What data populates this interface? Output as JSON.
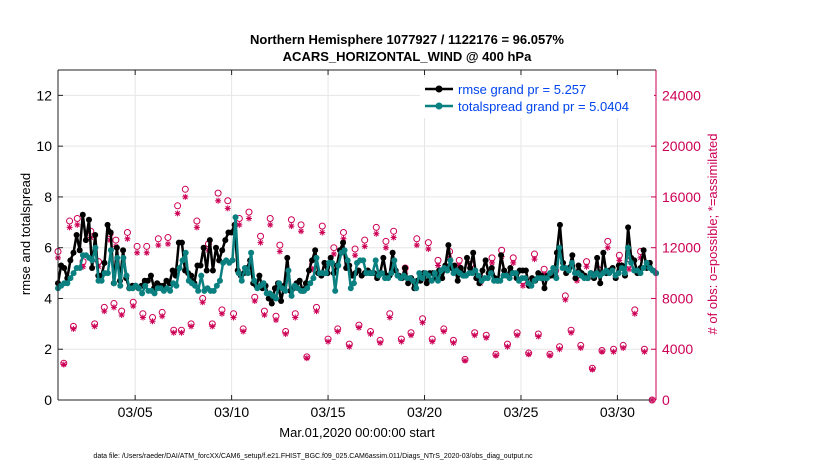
{
  "chart_data": {
    "type": "line",
    "title": "Northern Hemisphere 1077927 / 1122176 = 96.057%",
    "subtitle": "ACARS_HORIZONTAL_WIND @ 400 hPa",
    "xlabel": "Mar.01,2020 00:00:00 start",
    "ylabel": "rmse and totalspread",
    "y2label": "# of obs: o=possible; *=assimilated",
    "footer": "data file: /Users/raeder/DAI/ATM_forcXX/CAM6_setup/f.e21.FHIST_BGC.f09_025.CAM6assim.011/Diags_NTrS_2020-03/obs_diag_output.nc",
    "xlim": [
      1,
      32
    ],
    "ylim": [
      0,
      13
    ],
    "y2lim": [
      0,
      26000
    ],
    "x_ticks": [
      5,
      10,
      15,
      20,
      25,
      30
    ],
    "x_tick_labels": [
      "03/05",
      "03/10",
      "03/15",
      "03/20",
      "03/25",
      "03/30"
    ],
    "y_ticks": [
      0,
      2,
      4,
      6,
      8,
      10,
      12
    ],
    "y_tick_labels": [
      "0",
      "2",
      "4",
      "6",
      "8",
      "10",
      "12"
    ],
    "y2_ticks": [
      0,
      4000,
      8000,
      12000,
      16000,
      20000,
      24000
    ],
    "y2_tick_labels": [
      "0",
      "4000",
      "8000",
      "12000",
      "16000",
      "20000",
      "24000"
    ],
    "grid": true,
    "legend_position": "top-right",
    "colors": {
      "rmse": "#000000",
      "totalspread": "#0a8080",
      "obs": "#cc0055",
      "legend_text": "#0044ee"
    },
    "series": [
      {
        "name": "rmse grand pr = 5.257",
        "key": "rmse",
        "values": [
          4.6,
          5.3,
          5.2,
          4.8,
          5.5,
          5.8,
          6.5,
          5.9,
          7.3,
          6.3,
          7.1,
          5.2,
          6.5,
          4.9,
          4.9,
          5.4,
          6.9,
          6.6,
          4.6,
          6.0,
          4.7,
          5.9,
          4.8,
          4.4,
          4.5,
          4.5,
          4.4,
          4.5,
          4.7,
          4.7,
          4.9,
          4.4,
          4.6,
          4.5,
          4.5,
          4.7,
          4.6,
          5.1,
          4.9,
          6.2,
          6.2,
          5.1,
          5.0,
          4.9,
          4.6,
          5.3,
          5.3,
          6.0,
          5.1,
          6.3,
          5.1,
          6.0,
          5.5,
          5.9,
          6.3,
          6.6,
          6.6,
          6.9,
          5.1,
          4.9,
          5.0,
          5.2,
          5.5,
          4.6,
          4.5,
          4.9,
          4.4,
          4.5,
          4.0,
          3.8,
          4.4,
          4.6,
          3.9,
          4.5,
          5.6,
          4.3,
          4.4,
          4.6,
          4.7,
          4.3,
          4.6,
          5.1,
          5.5,
          5.9,
          5.0,
          4.9,
          5.4,
          5.0,
          5.6,
          5.0,
          5.3,
          5.9,
          6.2,
          5.2,
          5.3,
          4.9,
          5.0,
          5.1,
          4.9,
          5.0,
          5.1,
          5.0,
          5.0,
          4.8,
          5.0,
          5.6,
          4.9,
          4.9,
          5.8,
          5.1,
          4.9,
          4.8,
          5.2,
          4.6,
          4.8,
          4.4,
          4.7,
          4.7,
          5.0,
          4.6,
          5.0,
          5.0,
          4.8,
          5.1,
          4.8,
          5.3,
          6.1,
          5.2,
          5.3,
          4.7,
          5.2,
          4.9,
          5.6,
          5.2,
          5.8,
          4.8,
          4.6,
          5.1,
          5.5,
          5.0,
          5.2,
          4.8,
          4.7,
          5.7,
          5.1,
          4.9,
          5.2,
          5.0,
          4.8,
          5.1,
          5.1,
          5.1,
          4.5,
          4.8,
          4.7,
          5.0,
          4.9,
          4.4,
          4.9,
          4.9,
          4.9,
          5.8,
          6.9,
          5.4,
          5.0,
          5.2,
          5.7,
          4.8,
          5.3,
          5.0,
          4.9,
          4.8,
          5.0,
          4.8,
          5.6,
          4.6,
          5.8,
          5.0,
          5.1,
          5.2,
          4.8,
          5.3,
          5.3,
          4.9,
          6.8,
          5.6,
          5.5,
          5.0,
          5.2,
          5.9,
          5.2,
          5.4,
          5.1,
          5.0
        ]
      },
      {
        "name": "totalspread grand pr = 5.0404",
        "key": "totalspread",
        "values": [
          4.4,
          4.5,
          4.6,
          4.6,
          4.8,
          5.0,
          5.2,
          5.2,
          5.7,
          5.7,
          5.6,
          5.5,
          6.0,
          4.7,
          4.7,
          5.0,
          5.0,
          5.9,
          4.6,
          5.6,
          4.5,
          5.6,
          4.9,
          4.4,
          4.4,
          4.5,
          4.4,
          4.2,
          4.5,
          4.3,
          4.3,
          4.2,
          4.4,
          4.4,
          4.3,
          4.4,
          4.3,
          4.6,
          4.5,
          5.2,
          5.5,
          5.8,
          4.7,
          4.6,
          4.5,
          4.3,
          4.9,
          4.3,
          4.4,
          4.3,
          4.3,
          4.5,
          4.7,
          5.4,
          5.5,
          5.4,
          5.5,
          7.2,
          5.0,
          4.7,
          5.2,
          5.0,
          5.8,
          4.7,
          4.4,
          4.5,
          4.6,
          4.2,
          4.2,
          4.1,
          4.0,
          4.6,
          4.4,
          4.3,
          5.1,
          4.1,
          4.5,
          4.4,
          4.3,
          4.3,
          4.4,
          4.6,
          4.8,
          5.6,
          5.0,
          5.0,
          5.0,
          5.4,
          5.4,
          4.3,
          5.3,
          5.8,
          5.9,
          5.5,
          4.4,
          4.6,
          5.4,
          5.5,
          5.5,
          5.0,
          5.0,
          5.0,
          5.5,
          4.9,
          5.0,
          4.8,
          4.8,
          5.0,
          5.5,
          4.9,
          4.8,
          4.9,
          4.8,
          4.8,
          4.7,
          4.4,
          5.0,
          4.8,
          5.0,
          4.9,
          4.7,
          5.0,
          4.7,
          5.1,
          5.2,
          5.1,
          5.5,
          5.0,
          5.1,
          5.0,
          4.9,
          4.9,
          5.0,
          5.0,
          5.1,
          4.9,
          4.7,
          4.8,
          4.8,
          5.0,
          4.7,
          4.7,
          4.7,
          4.9,
          4.9,
          4.8,
          5.0,
          5.0,
          4.7,
          4.8,
          4.8,
          4.6,
          4.5,
          4.7,
          4.8,
          4.8,
          4.8,
          4.8,
          5.0,
          5.2,
          4.8,
          6.0,
          5.2,
          5.2,
          5.1,
          5.4,
          5.0,
          5.0,
          4.9,
          4.8,
          4.8,
          5.0,
          4.9,
          5.0,
          4.9,
          5.0,
          5.1,
          5.0,
          5.1,
          4.9,
          5.0,
          5.2,
          5.0,
          6.0,
          5.4,
          5.1,
          5.1,
          5.0,
          5.2,
          5.4,
          5.2,
          5.1,
          5.0
        ]
      }
    ],
    "obs_possible_x": [
      1.0,
      1.3,
      1.6,
      1.8,
      2.0,
      2.3,
      2.7,
      2.9,
      3.1,
      3.4,
      3.7,
      3.9,
      4.0,
      4.3,
      4.6,
      4.9,
      5.1,
      5.4,
      5.6,
      5.9,
      6.2,
      6.4,
      6.7,
      7.0,
      7.2,
      7.4,
      7.6,
      7.9,
      8.2,
      8.5,
      8.8,
      9.0,
      9.3,
      9.5,
      9.8,
      10.1,
      10.4,
      10.6,
      10.9,
      11.2,
      11.5,
      11.7,
      12.0,
      12.3,
      12.5,
      12.8,
      13.1,
      13.3,
      13.6,
      13.9,
      14.2,
      14.4,
      14.7,
      15.0,
      15.3,
      15.5,
      15.8,
      16.1,
      16.4,
      16.6,
      16.9,
      17.2,
      17.5,
      17.7,
      18.0,
      18.2,
      18.4,
      18.8,
      19.0,
      19.3,
      19.6,
      19.9,
      20.2,
      20.4,
      20.7,
      21.0,
      21.3,
      21.5,
      21.8,
      22.1,
      22.4,
      22.6,
      22.9,
      23.2,
      23.5,
      23.7,
      24.0,
      24.3,
      24.6,
      24.8,
      25.1,
      25.4,
      25.7,
      25.9,
      26.2,
      26.5,
      26.8,
      27.0,
      27.3,
      27.6,
      27.9,
      28.1,
      28.4,
      28.7,
      29.0,
      29.2,
      29.5,
      29.8,
      30.1,
      30.3,
      30.6,
      30.9,
      31.2,
      31.4,
      31.8
    ],
    "obs_possible_y": [
      11700,
      2900,
      14100,
      5800,
      14300,
      10900,
      13300,
      6000,
      10900,
      7300,
      13100,
      7600,
      12600,
      7000,
      13200,
      7700,
      12100,
      6800,
      12100,
      6500,
      12700,
      6900,
      12800,
      5500,
      15300,
      5500,
      16600,
      6000,
      14100,
      8000,
      12300,
      6000,
      16300,
      7100,
      15700,
      6800,
      14300,
      5600,
      14800,
      8100,
      12900,
      7000,
      14300,
      6600,
      12200,
      5400,
      14200,
      6800,
      13800,
      3400,
      10700,
      7300,
      13700,
      4800,
      12000,
      5600,
      13200,
      4400,
      11900,
      5900,
      12600,
      5400,
      13600,
      4700,
      12500,
      6800,
      13300,
      4800,
      10400,
      5300,
      12700,
      6400,
      12400,
      4800,
      11000,
      5600,
      11700,
      4700,
      11000,
      3200,
      10700,
      5300,
      9600,
      5100,
      11200,
      3600,
      11800,
      4400,
      11200,
      5300,
      9400,
      3700,
      11500,
      5200,
      10300,
      3600,
      10200,
      4200,
      8200,
      5500,
      9800,
      4300,
      10900,
      2500,
      10300,
      3900,
      12500,
      4000,
      11400,
      4300,
      10700,
      7100,
      11700,
      4000,
      0
    ],
    "obs_assimilated_x": [
      1.0,
      1.3,
      1.6,
      1.8,
      2.0,
      2.3,
      2.7,
      2.9,
      3.1,
      3.4,
      3.7,
      3.9,
      4.0,
      4.3,
      4.6,
      4.9,
      5.1,
      5.4,
      5.6,
      5.9,
      6.2,
      6.4,
      6.7,
      7.0,
      7.2,
      7.4,
      7.6,
      7.9,
      8.2,
      8.5,
      8.8,
      9.0,
      9.3,
      9.5,
      9.8,
      10.1,
      10.4,
      10.6,
      10.9,
      11.2,
      11.5,
      11.7,
      12.0,
      12.3,
      12.5,
      12.8,
      13.1,
      13.3,
      13.6,
      13.9,
      14.2,
      14.4,
      14.7,
      15.0,
      15.3,
      15.5,
      15.8,
      16.1,
      16.4,
      16.6,
      16.9,
      17.2,
      17.5,
      17.7,
      18.0,
      18.2,
      18.4,
      18.8,
      19.0,
      19.3,
      19.6,
      19.9,
      20.2,
      20.4,
      20.7,
      21.0,
      21.3,
      21.5,
      21.8,
      22.1,
      22.4,
      22.6,
      22.9,
      23.2,
      23.5,
      23.7,
      24.0,
      24.3,
      24.6,
      24.8,
      25.1,
      25.4,
      25.7,
      25.9,
      26.2,
      26.5,
      26.8,
      27.0,
      27.3,
      27.6,
      27.9,
      28.1,
      28.4,
      28.7,
      29.0,
      29.2,
      29.5,
      29.8,
      30.1,
      30.3,
      30.6,
      30.9,
      31.2,
      31.4,
      31.8
    ],
    "obs_assimilated_y": [
      11200,
      2800,
      13600,
      5600,
      13800,
      10500,
      12800,
      5800,
      10500,
      7000,
      12600,
      7300,
      12100,
      6700,
      12700,
      7400,
      11600,
      6500,
      11600,
      6200,
      12200,
      6600,
      12300,
      5300,
      14700,
      5300,
      16000,
      5800,
      13600,
      7700,
      11800,
      5800,
      15700,
      6800,
      15100,
      6500,
      13800,
      5400,
      14300,
      7800,
      12400,
      6700,
      13800,
      6300,
      11700,
      5200,
      13700,
      6500,
      13300,
      3300,
      10300,
      7000,
      13200,
      4600,
      11500,
      5400,
      12700,
      4200,
      11400,
      5700,
      12100,
      5200,
      13100,
      4500,
      12000,
      6500,
      12800,
      4600,
      10000,
      5100,
      12200,
      6100,
      11900,
      4600,
      10600,
      5400,
      11200,
      4500,
      10600,
      3100,
      10300,
      5100,
      9200,
      4900,
      10800,
      3500,
      11300,
      4200,
      10800,
      5100,
      9000,
      3600,
      11100,
      5000,
      9900,
      3500,
      9800,
      4000,
      7900,
      5300,
      9400,
      4100,
      10500,
      2400,
      9900,
      3800,
      12000,
      3800,
      11000,
      4100,
      10300,
      6800,
      11200,
      3800,
      0
    ]
  }
}
